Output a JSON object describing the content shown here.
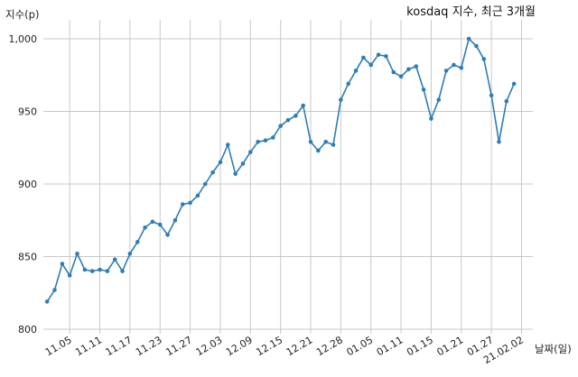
{
  "chart_data": {
    "type": "line",
    "title": "kosdaq 지수, 최근 3개월",
    "xlabel": "날짜(일)",
    "ylabel": "지수(p)",
    "ylim": [
      800,
      1000
    ],
    "yticks": [
      800,
      850,
      900,
      950,
      1000
    ],
    "ytick_labels": [
      "800",
      "850",
      "900",
      "950",
      "1,000"
    ],
    "xtick_labels": [
      "11.05",
      "11.11",
      "11.17",
      "11.23",
      "11.27",
      "12.03",
      "12.09",
      "12.15",
      "12.21",
      "12.28",
      "01.05",
      "01.11",
      "01.15",
      "01.21",
      "01.27",
      "21.02.02"
    ],
    "xtick_indices": [
      3,
      7,
      11,
      15,
      19,
      23,
      27,
      31,
      35,
      39,
      43,
      47,
      51,
      55,
      59,
      63
    ],
    "x_range": [
      -0.5,
      64.5
    ],
    "grid": true,
    "series": [
      {
        "color": "#2e7db4",
        "values": [
          819,
          827,
          845,
          837,
          852,
          841,
          840,
          841,
          840,
          848,
          840,
          852,
          860,
          870,
          874,
          872,
          865,
          875,
          886,
          887,
          892,
          900,
          908,
          915,
          927,
          907,
          914,
          922,
          929,
          930,
          932,
          940,
          944,
          947,
          954,
          929,
          923,
          929,
          927,
          958,
          969,
          978,
          987,
          982,
          989,
          988,
          977,
          974,
          979,
          981,
          965,
          945,
          958,
          978,
          982,
          980,
          1000,
          995,
          986,
          961,
          929,
          957,
          969
        ]
      }
    ]
  }
}
